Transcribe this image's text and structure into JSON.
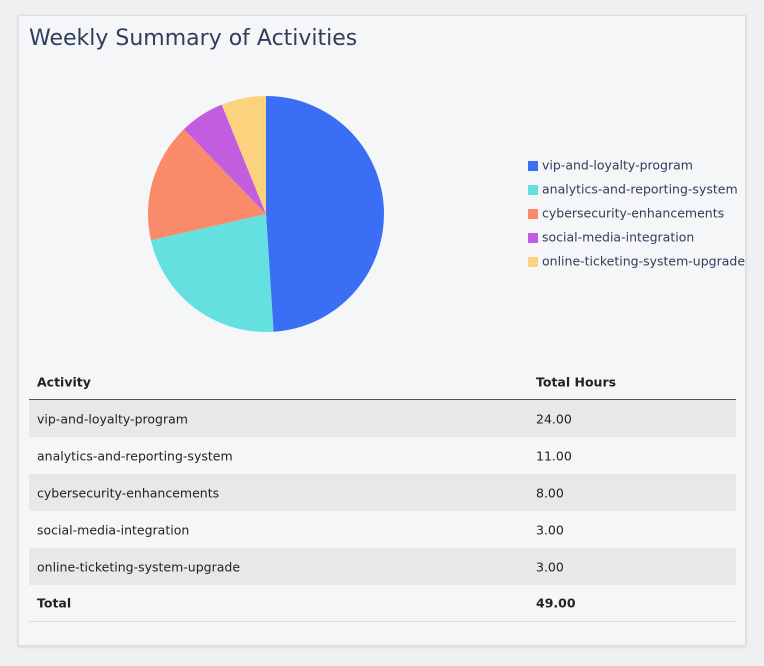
{
  "chart_data": {
    "type": "pie",
    "title": "Weekly Summary of Activities",
    "categories": [
      "vip-and-loyalty-program",
      "analytics-and-reporting-system",
      "cybersecurity-enhancements",
      "social-media-integration",
      "online-ticketing-system-upgrade"
    ],
    "values": [
      24,
      11,
      8,
      3,
      3
    ],
    "colors": [
      "#3a6ff5",
      "#64e0e0",
      "#f98b6b",
      "#c25de0",
      "#fdd27f"
    ],
    "legend": "right"
  },
  "table": {
    "headers": [
      "Activity",
      "Total Hours"
    ],
    "rows": [
      [
        "vip-and-loyalty-program",
        "24.00"
      ],
      [
        "analytics-and-reporting-system",
        "11.00"
      ],
      [
        "cybersecurity-enhancements",
        "8.00"
      ],
      [
        "social-media-integration",
        "3.00"
      ],
      [
        "online-ticketing-system-upgrade",
        "3.00"
      ]
    ],
    "total": [
      "Total",
      "49.00"
    ]
  }
}
